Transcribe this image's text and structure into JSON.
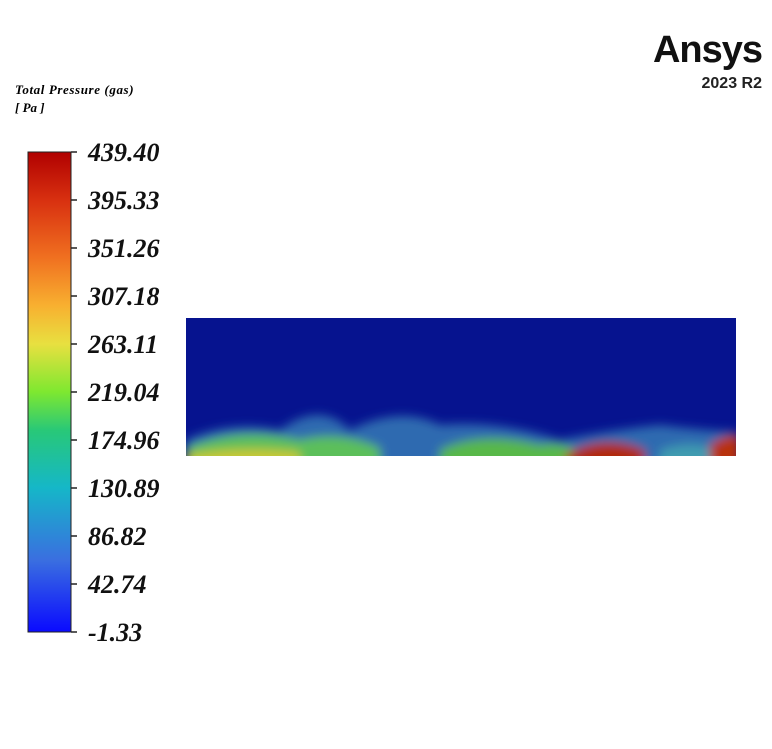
{
  "colorbar": {
    "title": "Total Pressure (gas)",
    "unit": "[ Pa ]",
    "lim": [
      -1.33,
      439.4
    ],
    "ticks": [
      {
        "value": 439.4,
        "label": "439.40"
      },
      395.33,
      351.26,
      307.18,
      263.11,
      219.04,
      174.96,
      130.89,
      86.82,
      42.74,
      -1.33
    ]
  },
  "logo": {
    "name": "Ansys",
    "version": "2023 R2"
  }
}
